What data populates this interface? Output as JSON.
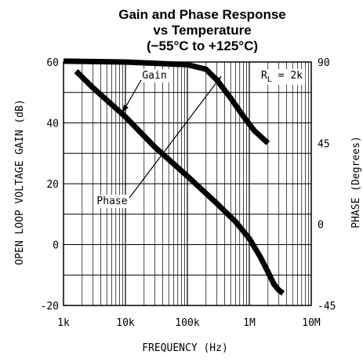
{
  "chart_data": {
    "type": "line",
    "title": [
      "Gain and Phase Response",
      "vs Temperature",
      "(−55°C to +125°C)"
    ],
    "xlabel": "FREQUENCY (Hz)",
    "ylabel": "OPEN LOOP VOLTAGE GAIN (dB)",
    "y2label": "PHASE (Degrees)",
    "x_scale": "log",
    "xlim": [
      1000,
      10000000
    ],
    "ylim": [
      -20,
      60
    ],
    "y2lim": [
      -45,
      90
    ],
    "grid": true,
    "x_ticks": [
      {
        "value": 1000,
        "label": "1k"
      },
      {
        "value": 10000,
        "label": "10k"
      },
      {
        "value": 100000,
        "label": "100k"
      },
      {
        "value": 1000000,
        "label": "1M"
      },
      {
        "value": 10000000,
        "label": "10M"
      }
    ],
    "y_ticks": [
      {
        "value": 60,
        "label": "60"
      },
      {
        "value": 40,
        "label": "40"
      },
      {
        "value": 20,
        "label": "20"
      },
      {
        "value": 0,
        "label": "0"
      },
      {
        "value": -20,
        "label": "-20"
      }
    ],
    "y2_ticks": [
      {
        "value": 90,
        "label": "90"
      },
      {
        "value": 45,
        "label": "45"
      },
      {
        "value": 0,
        "label": "0"
      },
      {
        "value": -45,
        "label": "-45"
      }
    ],
    "annotation": "R_L = 2k",
    "series": [
      {
        "name": "Gain",
        "axis": "left",
        "x": [
          1600,
          3000,
          10000,
          30000,
          100000,
          300000,
          600000,
          1000000,
          1500000,
          2000000,
          2500000,
          3000000,
          3500000
        ],
        "y": [
          57,
          51.5,
          42,
          32,
          22.5,
          13.5,
          7.5,
          2,
          -4,
          -9,
          -13,
          -15,
          -16
        ]
      },
      {
        "name": "Phase",
        "axis": "right",
        "x": [
          1000,
          10000,
          100000,
          200000,
          300000,
          500000,
          800000,
          1200000,
          2000000
        ],
        "y": [
          90.5,
          90,
          88.5,
          86,
          80,
          70,
          60,
          52,
          45
        ]
      }
    ]
  }
}
